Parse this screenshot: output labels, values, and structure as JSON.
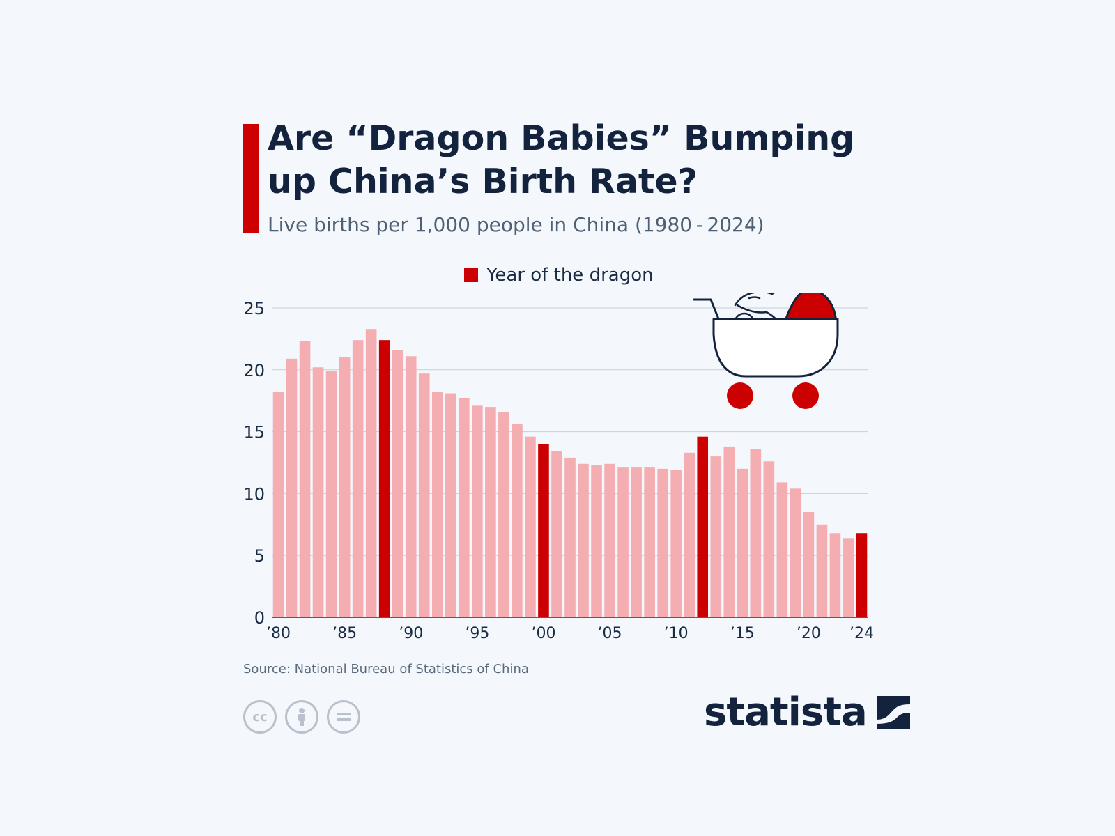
{
  "header": {
    "title": "Are “Dragon Babies” Bumping up China’s Birth Rate?",
    "subtitle": "Live births per 1,000 people in China (1980 - 2024)"
  },
  "legend": {
    "label": "Year of the dragon"
  },
  "footer": {
    "source": "Source: National Bureau of Statistics of China",
    "brand": "statista",
    "cc_icons": [
      "cc-icon",
      "attribution-icon",
      "no-derivatives-icon"
    ]
  },
  "colors": {
    "accent": "#cc0000",
    "bar": "#f4aeb2",
    "dragon_bar": "#cc0000",
    "title": "#13233d",
    "grid": "#c9cfd6",
    "background": "#f4f7fb"
  },
  "chart_data": {
    "type": "bar",
    "title": "",
    "xlabel": "",
    "ylabel": "",
    "ylim": [
      0,
      25
    ],
    "yticks": [
      0,
      5,
      10,
      15,
      20,
      25
    ],
    "grid": true,
    "legend_position": "top-center",
    "x_tick_labels": [
      {
        "year": 1980,
        "label": "’80"
      },
      {
        "year": 1985,
        "label": "’85"
      },
      {
        "year": 1990,
        "label": "’90"
      },
      {
        "year": 1995,
        "label": "’95"
      },
      {
        "year": 2000,
        "label": "’00"
      },
      {
        "year": 2005,
        "label": "’05"
      },
      {
        "year": 2010,
        "label": "’10"
      },
      {
        "year": 2015,
        "label": "’15"
      },
      {
        "year": 2020,
        "label": "’20"
      },
      {
        "year": 2024,
        "label": "’24"
      }
    ],
    "dragon_years": [
      1988,
      2000,
      2012,
      2024
    ],
    "categories": [
      1980,
      1981,
      1982,
      1983,
      1984,
      1985,
      1986,
      1987,
      1988,
      1989,
      1990,
      1991,
      1992,
      1993,
      1994,
      1995,
      1996,
      1997,
      1998,
      1999,
      2000,
      2001,
      2002,
      2003,
      2004,
      2005,
      2006,
      2007,
      2008,
      2009,
      2010,
      2011,
      2012,
      2013,
      2014,
      2015,
      2016,
      2017,
      2018,
      2019,
      2020,
      2021,
      2022,
      2023,
      2024
    ],
    "values": [
      18.2,
      20.9,
      22.3,
      20.2,
      19.9,
      21.0,
      22.4,
      23.3,
      22.4,
      21.6,
      21.1,
      19.7,
      18.2,
      18.1,
      17.7,
      17.1,
      17.0,
      16.6,
      15.6,
      14.6,
      14.0,
      13.4,
      12.9,
      12.4,
      12.3,
      12.4,
      12.1,
      12.1,
      12.1,
      12.0,
      11.9,
      13.3,
      14.6,
      13.0,
      13.8,
      12.0,
      13.6,
      12.6,
      10.9,
      10.4,
      8.5,
      7.5,
      6.8,
      6.4,
      6.8
    ]
  }
}
